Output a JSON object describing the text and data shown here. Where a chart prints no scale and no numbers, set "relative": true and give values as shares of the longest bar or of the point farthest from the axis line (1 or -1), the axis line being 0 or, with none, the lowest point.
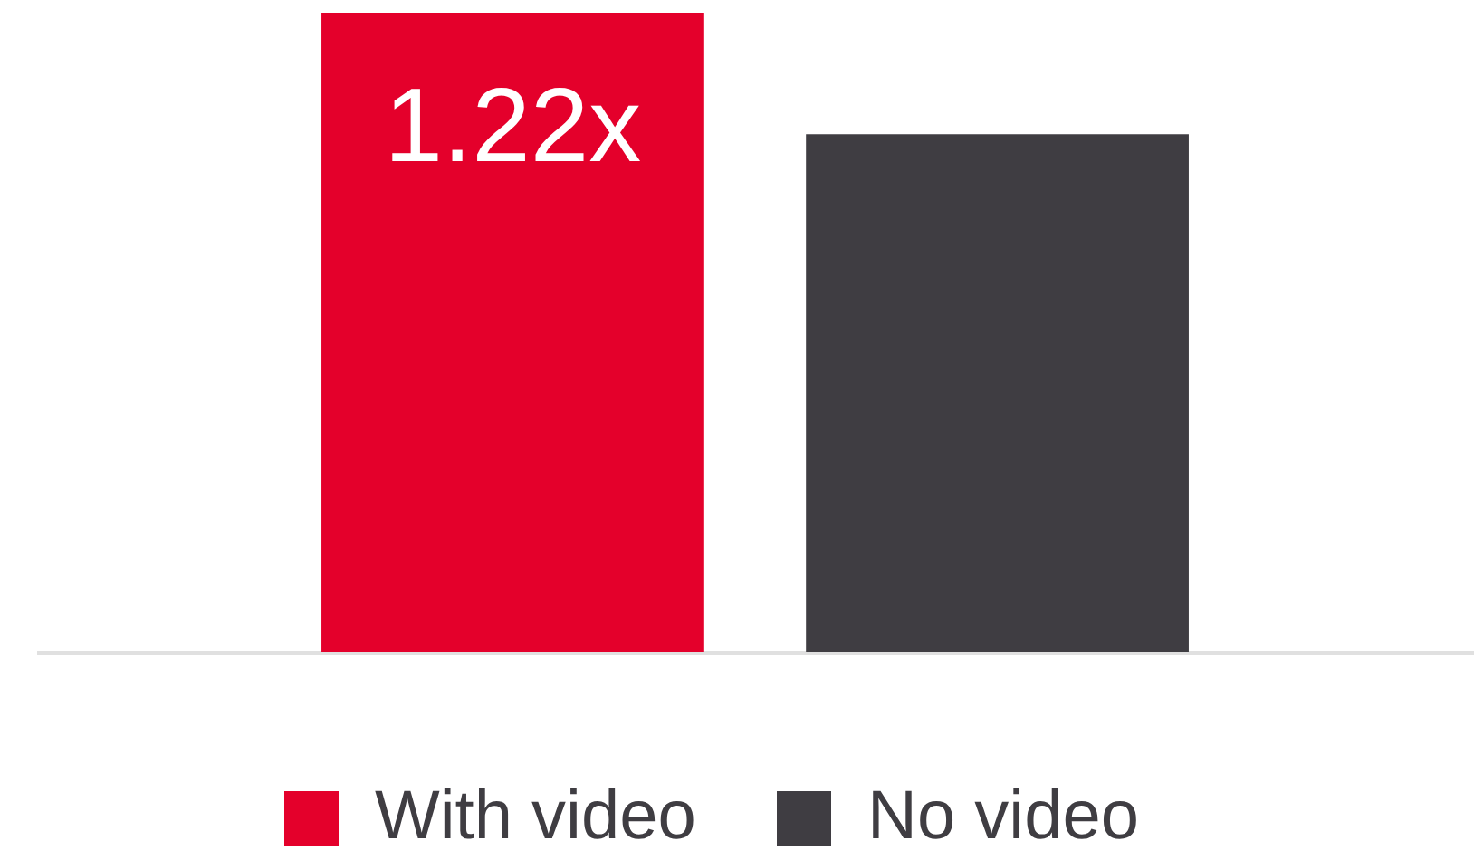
{
  "chart_data": {
    "type": "bar",
    "relative": true,
    "categories": [
      null
    ],
    "series": [
      {
        "name": "With video",
        "color": "#e4002b",
        "values": [
          1
        ]
      },
      {
        "name": "No video",
        "color": "#3f3d42",
        "values": [
          0.81
        ]
      }
    ],
    "annotations": [
      "1.22x"
    ],
    "legend": "bottom"
  }
}
